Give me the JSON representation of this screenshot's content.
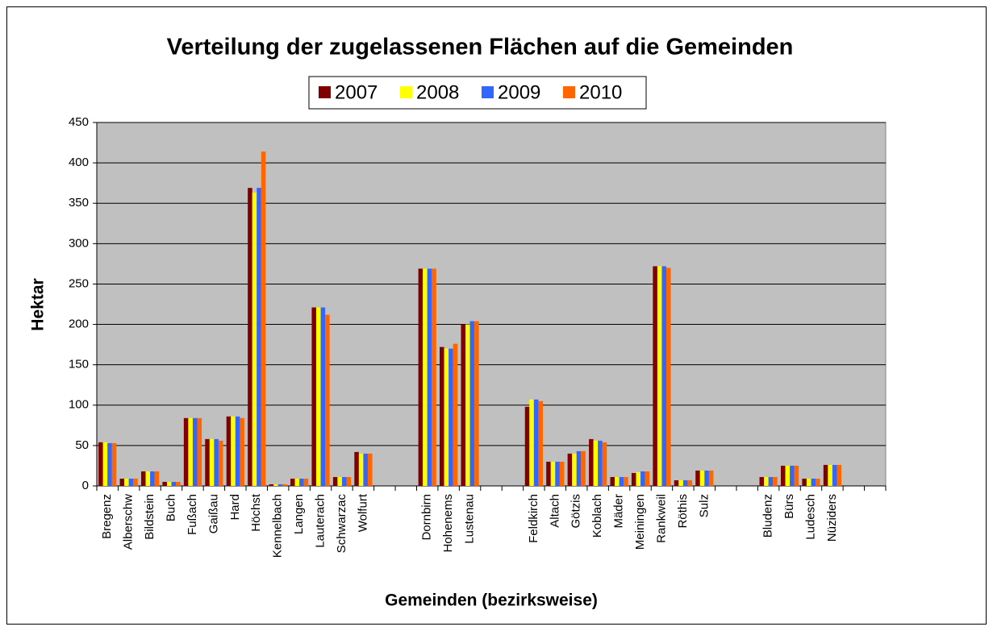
{
  "chart_data": {
    "type": "bar",
    "title": "Verteilung der zugelassenen Flächen auf die Gemeinden",
    "y_label": "Hektar",
    "x_label": "Gemeinden (bezirksweise)",
    "categories": [
      "Bregenz",
      "Alberschw",
      "Bildstein",
      "Buch",
      "Fußach",
      "Gaißau",
      "Hard",
      "Höchst",
      "Kennelbach",
      "Langen",
      "Lauterach",
      "Schwarzac",
      "Wolfurt",
      null,
      null,
      "Dornbirn",
      "Hohenems",
      "Lustenau",
      null,
      null,
      "Feldkirch",
      "Altach",
      "Götzis",
      "Koblach",
      "Mäder",
      "Meiningen",
      "Rankweil",
      "Röthis",
      "Sulz",
      null,
      null,
      "Bludenz",
      "Bürs",
      "Ludesch",
      "Nüziders",
      null,
      null
    ],
    "series": [
      {
        "name": "2007",
        "color": "#800000",
        "values": [
          54,
          9,
          18,
          5,
          84,
          58,
          86,
          369,
          2,
          9,
          221,
          11,
          42,
          null,
          null,
          269,
          172,
          200,
          null,
          null,
          98,
          30,
          40,
          58,
          11,
          16,
          272,
          7,
          19,
          null,
          null,
          11,
          25,
          9,
          26,
          null,
          null
        ]
      },
      {
        "name": "2008",
        "color": "#ffff00",
        "values": [
          54,
          9,
          18,
          5,
          84,
          58,
          86,
          363,
          2,
          9,
          221,
          11,
          40,
          null,
          null,
          269,
          170,
          200,
          null,
          null,
          107,
          30,
          40,
          56,
          11,
          17,
          272,
          7,
          19,
          null,
          null,
          11,
          25,
          9,
          26,
          null,
          null
        ]
      },
      {
        "name": "2009",
        "color": "#3366ff",
        "values": [
          53,
          9,
          18,
          5,
          84,
          58,
          86,
          369,
          2,
          9,
          221,
          11,
          40,
          null,
          null,
          269,
          170,
          204,
          null,
          null,
          107,
          30,
          43,
          56,
          11,
          18,
          272,
          7,
          19,
          null,
          null,
          11,
          25,
          9,
          26,
          null,
          null
        ]
      },
      {
        "name": "2010",
        "color": "#ff6600",
        "values": [
          53,
          9,
          18,
          5,
          84,
          56,
          84,
          414,
          2,
          9,
          212,
          11,
          40,
          null,
          null,
          269,
          176,
          204,
          null,
          null,
          105,
          30,
          43,
          54,
          11,
          18,
          270,
          7,
          19,
          null,
          null,
          11,
          25,
          9,
          26,
          null,
          null
        ]
      }
    ],
    "ylim": [
      0,
      450
    ],
    "yticks": [
      0,
      50,
      100,
      150,
      200,
      250,
      300,
      350,
      400,
      450
    ],
    "grid": true,
    "plot_background": "#c0c0c0",
    "legend": "top"
  }
}
